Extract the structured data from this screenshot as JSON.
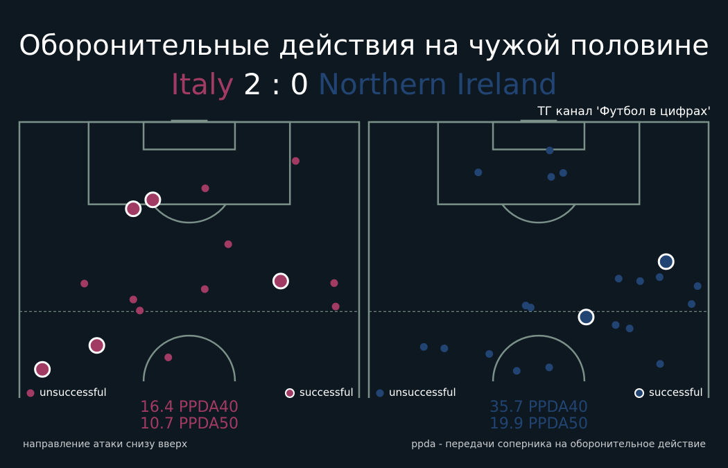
{
  "title": "Оборонительные действия на чужой половине",
  "match": {
    "team_a": "Italy",
    "score": "2 : 0",
    "team_b": "Northern Ireland"
  },
  "credit": "ТГ канал 'Футбол в цифрах'",
  "footer": {
    "left": "направление атаки снизу вверх",
    "right": "ppda - передачи соперника на оборонительное действие"
  },
  "colors": {
    "background": "#0e1821",
    "pitch_lines": "#7a9088",
    "team_a": "#a13b63",
    "team_b": "#224472",
    "marker_edge": "#ffffff"
  },
  "chart_data": [
    {
      "type": "scatter",
      "team": "Italy",
      "color": "#a13b63",
      "legend": {
        "unsuccessful": "unsuccessful",
        "successful": "successful"
      },
      "ppda": [
        "16.4 PPDA40",
        "10.7 PPDA50"
      ],
      "xlim": [
        0,
        68
      ],
      "ylim": [
        50,
        102
      ],
      "unsuccessful": [
        [
          55.3,
          94.2
        ],
        [
          37.2,
          88.7
        ],
        [
          41.8,
          77.5
        ],
        [
          13.0,
          69.6
        ],
        [
          22.8,
          66.4
        ],
        [
          24.1,
          64.2
        ],
        [
          37.1,
          68.5
        ],
        [
          63.0,
          69.7
        ],
        [
          63.3,
          65.0
        ],
        [
          29.8,
          54.8
        ]
      ],
      "successful": [
        [
          22.8,
          84.6
        ],
        [
          26.7,
          86.4
        ],
        [
          52.3,
          70.1
        ],
        [
          15.5,
          57.2
        ],
        [
          4.6,
          52.4
        ]
      ]
    },
    {
      "type": "scatter",
      "team": "Northern Ireland",
      "color": "#224472",
      "legend": {
        "unsuccessful": "unsuccessful",
        "successful": "successful"
      },
      "ppda": [
        "35.7 PPDA40",
        "19.9 PPDA50"
      ],
      "xlim": [
        0,
        68
      ],
      "ylim": [
        50,
        102
      ],
      "unsuccessful": [
        [
          36.2,
          96.3
        ],
        [
          21.9,
          91.9
        ],
        [
          36.5,
          91.0
        ],
        [
          38.9,
          91.8
        ],
        [
          50.0,
          70.6
        ],
        [
          54.3,
          70.1
        ],
        [
          58.2,
          70.9
        ],
        [
          65.8,
          69.1
        ],
        [
          64.6,
          65.5
        ],
        [
          31.4,
          65.2
        ],
        [
          32.4,
          64.8
        ],
        [
          49.4,
          61.3
        ],
        [
          52.2,
          60.6
        ],
        [
          11.0,
          56.9
        ],
        [
          15.1,
          56.6
        ],
        [
          24.1,
          55.5
        ],
        [
          58.3,
          53.5
        ],
        [
          36.1,
          52.8
        ],
        [
          29.6,
          52.1
        ]
      ],
      "successful": [
        [
          59.5,
          74.0
        ],
        [
          43.5,
          62.9
        ]
      ]
    }
  ]
}
